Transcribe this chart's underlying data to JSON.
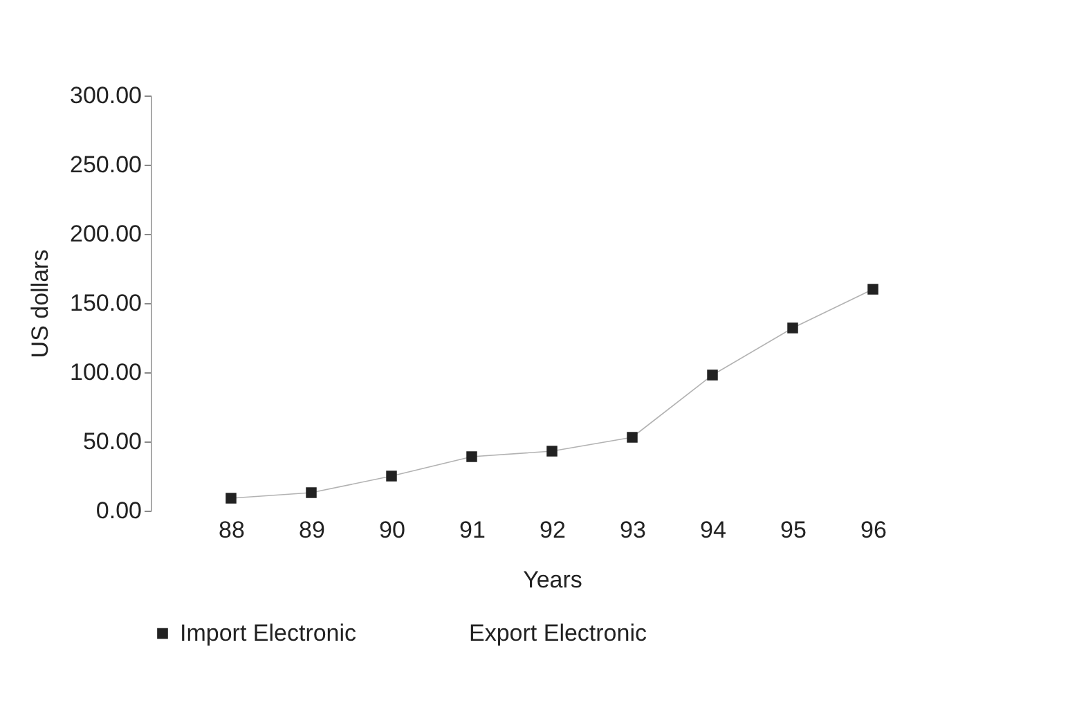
{
  "chart_data": {
    "type": "line",
    "xlabel": "Years",
    "ylabel": "US dollars",
    "categories": [
      "88",
      "89",
      "90",
      "91",
      "92",
      "93",
      "94",
      "95",
      "96"
    ],
    "series": [
      {
        "name": "Import Electronic",
        "color": "#222222",
        "values": [
          9,
          13,
          25,
          39,
          43,
          53,
          98,
          132,
          160
        ]
      },
      {
        "name": "Export Electronic",
        "values": [
          null,
          null,
          null,
          null,
          null,
          null,
          null,
          null,
          null
        ]
      }
    ],
    "ylim": [
      0,
      300
    ],
    "yticks": [
      {
        "value": 0,
        "label": "0.00"
      },
      {
        "value": 50,
        "label": "50.00"
      },
      {
        "value": 100,
        "label": "100.00"
      },
      {
        "value": 150,
        "label": "150.00"
      },
      {
        "value": 200,
        "label": "200.00"
      },
      {
        "value": 250,
        "label": "250.00"
      },
      {
        "value": 300,
        "label": "300.00"
      }
    ],
    "grid": false,
    "legend": "bottom",
    "marker": "square",
    "line_style": "solid"
  }
}
